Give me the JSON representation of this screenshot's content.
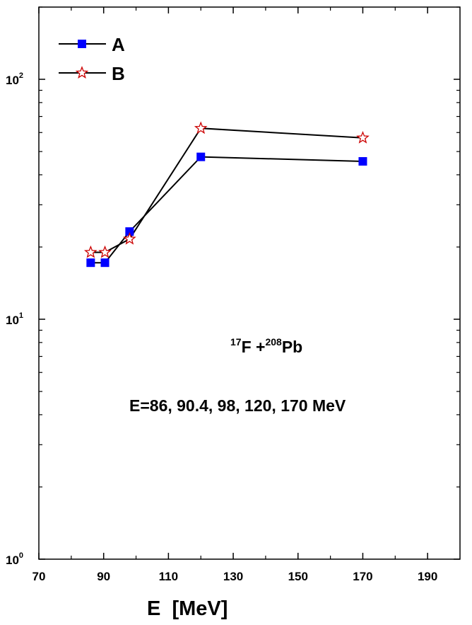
{
  "chart_data": {
    "type": "line",
    "xlabel": "E  [MeV]",
    "ylabel": "",
    "xlim": [
      70,
      200
    ],
    "ylim": [
      1,
      200
    ],
    "y_scale": "log",
    "x_ticks": [
      70,
      90,
      110,
      130,
      150,
      170,
      190
    ],
    "x_tick_labels": [
      "70",
      "90",
      "110",
      "130",
      "150",
      "170",
      "190"
    ],
    "y_major_ticks": [
      1,
      10,
      100
    ],
    "y_tick_labels": [
      {
        "base": "10",
        "exp": "0"
      },
      {
        "base": "10",
        "exp": "1"
      },
      {
        "base": "10",
        "exp": "2"
      }
    ],
    "grid": false,
    "legend_position": "top-left",
    "series": [
      {
        "name": "A",
        "color": "#0000ff",
        "marker": "filled-square",
        "x": [
          86,
          90.4,
          98,
          120,
          170
        ],
        "y": [
          17.2,
          17.2,
          23.2,
          47.5,
          45.5
        ]
      },
      {
        "name": "B",
        "color": "#cc0000",
        "marker": "open-star",
        "x": [
          86,
          90.4,
          98,
          120,
          170
        ],
        "y": [
          19,
          19,
          21.6,
          62.5,
          57
        ]
      }
    ],
    "annotations": {
      "reaction": {
        "p1_sup": "17",
        "p1": "F +",
        "p2_sup": "208",
        "p2": "Pb"
      },
      "energies": "E=86, 90.4, 98, 120, 170 MeV"
    }
  }
}
